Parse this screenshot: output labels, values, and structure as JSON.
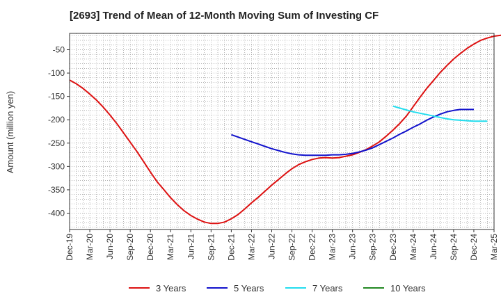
{
  "chart_data": {
    "type": "line",
    "title": "[2693]  Trend of Mean of 12-Month Moving Sum of Investing CF",
    "xlabel": "",
    "ylabel": "Amount (million yen)",
    "ylim": [
      -435,
      -15
    ],
    "yticks": [
      -50,
      -100,
      -150,
      -200,
      -250,
      -300,
      -350,
      -400
    ],
    "grid": true,
    "legend_position": "bottom",
    "x_tick_labels": [
      "Dec-19",
      "Mar-20",
      "Jun-20",
      "Sep-20",
      "Dec-20",
      "Mar-21",
      "Jun-21",
      "Sep-21",
      "Dec-21",
      "Mar-22",
      "Jun-22",
      "Sep-22",
      "Dec-22",
      "Mar-23",
      "Jun-23",
      "Sep-23",
      "Dec-23",
      "Mar-24",
      "Jun-24",
      "Sep-24",
      "Dec-24",
      "Mar-25"
    ],
    "series": [
      {
        "name": "3 Years",
        "color": "#dd1111",
        "start_index": 0,
        "values": [
          -115,
          -123,
          -133,
          -145,
          -158,
          -173,
          -190,
          -208,
          -228,
          -248,
          -268,
          -290,
          -312,
          -333,
          -350,
          -367,
          -382,
          -395,
          -405,
          -413,
          -419,
          -422,
          -422,
          -419,
          -412,
          -403,
          -391,
          -378,
          -366,
          -353,
          -340,
          -328,
          -316,
          -305,
          -296,
          -290,
          -285,
          -282,
          -281,
          -282,
          -281,
          -278,
          -275,
          -270,
          -264,
          -256,
          -247,
          -235,
          -222,
          -208,
          -192,
          -172,
          -152,
          -133,
          -116,
          -99,
          -84,
          -70,
          -58,
          -47,
          -38,
          -30,
          -25,
          -21,
          -19,
          -18
        ]
      },
      {
        "name": "5 Years",
        "color": "#1111cc",
        "start_index": 24,
        "values": [
          -232,
          -237,
          -242,
          -247,
          -252,
          -257,
          -262,
          -266,
          -270,
          -273,
          -275,
          -276,
          -276,
          -276,
          -276,
          -275,
          -275,
          -274,
          -272,
          -269,
          -265,
          -260,
          -253,
          -246,
          -239,
          -231,
          -224,
          -216,
          -209,
          -201,
          -194,
          -188,
          -183,
          -180,
          -178,
          -178,
          -178
        ]
      },
      {
        "name": "7 Years",
        "color": "#22ddee",
        "start_index": 48,
        "values": [
          -171,
          -175,
          -179,
          -183,
          -186,
          -189,
          -192,
          -195,
          -198,
          -200,
          -201,
          -202,
          -203,
          -203,
          -203
        ]
      },
      {
        "name": "10 Years",
        "color": "#228822",
        "start_index": 0,
        "values": []
      }
    ]
  }
}
